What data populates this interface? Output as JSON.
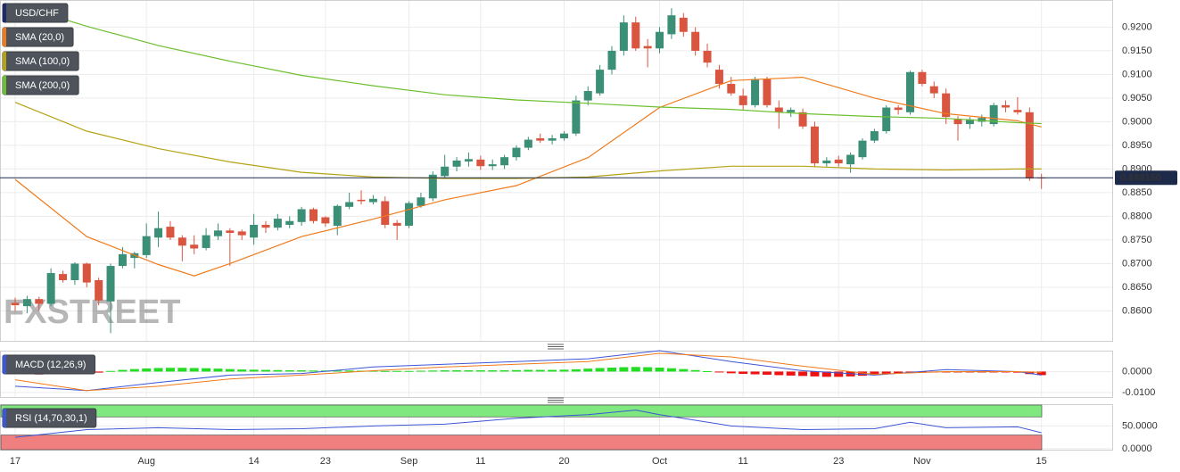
{
  "chart_data": [
    {
      "type": "candlestick",
      "watermark": "FXSTREET",
      "categories": [
        "17",
        null,
        null,
        null,
        null,
        null,
        null,
        null,
        null,
        null,
        null,
        "Aug",
        null,
        null,
        null,
        null,
        null,
        null,
        null,
        null,
        "14",
        null,
        null,
        null,
        null,
        null,
        "23",
        null,
        null,
        null,
        null,
        null,
        null,
        "Sep",
        null,
        null,
        null,
        null,
        null,
        "11",
        null,
        null,
        null,
        null,
        null,
        null,
        "20",
        null,
        null,
        null,
        null,
        null,
        null,
        null,
        "Oct",
        null,
        null,
        null,
        null,
        null,
        null,
        "11",
        null,
        null,
        null,
        null,
        null,
        null,
        null,
        "23",
        null,
        null,
        null,
        null,
        null,
        null,
        "Nov",
        null,
        null,
        null,
        null,
        null,
        null,
        null,
        null,
        null,
        "15"
      ],
      "ylim": [
        0.85348,
        0.92574
      ],
      "yticks": [
        {
          "value": 0.86,
          "label": "0.8600"
        },
        {
          "value": 0.865,
          "label": "0.8650"
        },
        {
          "value": 0.87,
          "label": "0.8700"
        },
        {
          "value": 0.875,
          "label": "0.8750"
        },
        {
          "value": 0.88,
          "label": "0.8800"
        },
        {
          "value": 0.885,
          "label": "0.8850"
        },
        {
          "value": 0.89,
          "label": "0.8900"
        },
        {
          "value": 0.895,
          "label": "0.8950"
        },
        {
          "value": 0.9,
          "label": "0.9000"
        },
        {
          "value": 0.905,
          "label": "0.9050"
        },
        {
          "value": 0.91,
          "label": "0.9100"
        },
        {
          "value": 0.915,
          "label": "0.9150"
        },
        {
          "value": 0.92,
          "label": "0.9200"
        }
      ],
      "grid": true,
      "current_price": {
        "value": 0.88815,
        "label": "0.888150",
        "color": "#1e2a4a"
      },
      "series": [
        {
          "name": "USD/CHF",
          "color": "#1e2a6a",
          "color_up": "#3a8f76",
          "color_down": "#d9553f",
          "open": [
            0.8617,
            0.861,
            0.8625,
            0.8615,
            0.8678,
            0.8665,
            0.87,
            0.8665,
            0.862,
            0.8695,
            0.8712,
            0.8718,
            0.8755,
            0.8778,
            0.8755,
            0.874,
            0.8733,
            0.8758,
            0.877,
            0.8768,
            0.8755,
            0.8782,
            0.8776,
            0.8782,
            0.8788,
            0.8815,
            0.8798,
            0.878,
            0.882,
            0.8835,
            0.883,
            0.8832,
            0.8786,
            0.878,
            0.8822,
            0.8838,
            0.8885,
            0.8905,
            0.8916,
            0.892,
            0.8906,
            0.8908,
            0.8925,
            0.8945,
            0.8965,
            0.896,
            0.8965,
            0.8975,
            0.9045,
            0.906,
            0.911,
            0.915,
            0.921,
            0.916,
            0.9155,
            0.9185,
            0.922,
            0.919,
            0.915,
            0.911,
            0.908,
            0.9055,
            0.9035,
            0.909,
            0.903,
            0.902,
            0.902,
            0.899,
            0.8912,
            0.892,
            0.891,
            0.8925,
            0.896,
            0.898,
            0.903,
            0.902,
            0.9105,
            0.9075,
            0.906,
            0.9005,
            0.8995,
            0.9,
            0.8995,
            0.9035,
            0.9025,
            0.902,
            0.8882
          ],
          "high": [
            0.8628,
            0.8632,
            0.863,
            0.869,
            0.8685,
            0.8703,
            0.8702,
            0.867,
            0.87,
            0.8735,
            0.8725,
            0.8785,
            0.881,
            0.879,
            0.876,
            0.876,
            0.8775,
            0.8785,
            0.8775,
            0.8772,
            0.8805,
            0.879,
            0.8805,
            0.88,
            0.882,
            0.8818,
            0.88,
            0.8825,
            0.885,
            0.8855,
            0.8845,
            0.8842,
            0.8792,
            0.8832,
            0.885,
            0.8895,
            0.893,
            0.8925,
            0.8935,
            0.8928,
            0.892,
            0.893,
            0.895,
            0.8968,
            0.8975,
            0.8972,
            0.898,
            0.9055,
            0.9075,
            0.912,
            0.916,
            0.9225,
            0.9222,
            0.9175,
            0.92,
            0.924,
            0.923,
            0.92,
            0.9165,
            0.912,
            0.9095,
            0.907,
            0.9095,
            0.9095,
            0.9045,
            0.903,
            0.9028,
            0.9,
            0.8925,
            0.8928,
            0.8935,
            0.8965,
            0.8985,
            0.9035,
            0.9035,
            0.9108,
            0.911,
            0.9085,
            0.907,
            0.9012,
            0.901,
            0.9015,
            0.904,
            0.9045,
            0.9052,
            0.903,
            0.889
          ],
          "low": [
            0.86,
            0.8595,
            0.86,
            0.861,
            0.866,
            0.8655,
            0.865,
            0.8612,
            0.8553,
            0.869,
            0.869,
            0.8712,
            0.8735,
            0.875,
            0.8705,
            0.872,
            0.8728,
            0.875,
            0.8695,
            0.875,
            0.874,
            0.8765,
            0.877,
            0.8775,
            0.878,
            0.8785,
            0.8778,
            0.876,
            0.8815,
            0.8825,
            0.8825,
            0.8775,
            0.875,
            0.8775,
            0.8818,
            0.8832,
            0.888,
            0.8895,
            0.8905,
            0.8898,
            0.8898,
            0.89,
            0.8918,
            0.894,
            0.8955,
            0.8952,
            0.896,
            0.897,
            0.9035,
            0.9055,
            0.91,
            0.914,
            0.915,
            0.9115,
            0.9145,
            0.9175,
            0.918,
            0.914,
            0.9115,
            0.907,
            0.9055,
            0.9025,
            0.903,
            0.903,
            0.8985,
            0.901,
            0.8985,
            0.8905,
            0.8905,
            0.8905,
            0.8892,
            0.892,
            0.8955,
            0.8975,
            0.9015,
            0.9015,
            0.9075,
            0.905,
            0.8995,
            0.896,
            0.8985,
            0.899,
            0.899,
            0.902,
            0.9015,
            0.8875,
            0.8858
          ],
          "close": [
            0.8612,
            0.8625,
            0.8615,
            0.868,
            0.8665,
            0.87,
            0.866,
            0.8622,
            0.8695,
            0.872,
            0.8722,
            0.8758,
            0.8775,
            0.8755,
            0.8738,
            0.8732,
            0.876,
            0.877,
            0.8765,
            0.876,
            0.8782,
            0.8776,
            0.8795,
            0.879,
            0.8815,
            0.879,
            0.8785,
            0.8822,
            0.883,
            0.8832,
            0.8837,
            0.8782,
            0.878,
            0.8828,
            0.884,
            0.8888,
            0.8905,
            0.8918,
            0.8921,
            0.8906,
            0.891,
            0.8925,
            0.8945,
            0.8962,
            0.896,
            0.8965,
            0.8975,
            0.9045,
            0.9065,
            0.911,
            0.915,
            0.921,
            0.9155,
            0.9155,
            0.919,
            0.9225,
            0.919,
            0.915,
            0.9125,
            0.908,
            0.906,
            0.9035,
            0.909,
            0.9035,
            0.902,
            0.9025,
            0.899,
            0.8912,
            0.8918,
            0.8912,
            0.893,
            0.896,
            0.898,
            0.903,
            0.9025,
            0.9105,
            0.908,
            0.906,
            0.901,
            0.8995,
            0.9005,
            0.9008,
            0.9035,
            0.903,
            0.902,
            0.888,
            0.8881
          ]
        },
        {
          "name": "SMA (20,0)",
          "color": "#f07a1a",
          "x": [
            0,
            6,
            12,
            15,
            18,
            24,
            30,
            36,
            42,
            48,
            54,
            60,
            66,
            72,
            78,
            84,
            86
          ],
          "values": [
            0.8878,
            0.8757,
            0.8698,
            0.8674,
            0.87,
            0.8757,
            0.8794,
            0.8835,
            0.8865,
            0.8924,
            0.903,
            0.9087,
            0.9094,
            0.905,
            0.9017,
            0.9002,
            0.8989
          ]
        },
        {
          "name": "SMA (100,0)",
          "color": "#b5a214",
          "x": [
            0,
            6,
            12,
            18,
            24,
            30,
            36,
            42,
            48,
            54,
            60,
            66,
            72,
            78,
            84,
            86
          ],
          "values": [
            0.9041,
            0.898,
            0.8943,
            0.8915,
            0.8893,
            0.8883,
            0.888,
            0.888,
            0.8883,
            0.8896,
            0.8906,
            0.8906,
            0.89,
            0.8898,
            0.89,
            0.89
          ]
        },
        {
          "name": "SMA (200,0)",
          "color": "#6cbf2e",
          "x": [
            0,
            6,
            12,
            18,
            24,
            30,
            36,
            42,
            48,
            54,
            60,
            66,
            72,
            78,
            84,
            86
          ],
          "values": [
            0.9248,
            0.9202,
            0.9161,
            0.9128,
            0.9098,
            0.9076,
            0.9057,
            0.9046,
            0.9039,
            0.9031,
            0.9026,
            0.9017,
            0.9011,
            0.9007,
            0.8998,
            0.8996
          ]
        }
      ]
    },
    {
      "type": "macd",
      "title": "MACD (12,26,9)",
      "color": "#3d56d6",
      "ylim": [
        -0.0126,
        0.01
      ],
      "yticks": [
        {
          "value": 0,
          "label": "0.0000"
        },
        {
          "value": -0.01,
          "label": "-0.0100"
        }
      ],
      "series": [
        {
          "color": "#3d56d6",
          "x": [
            0,
            6,
            12,
            18,
            24,
            30,
            36,
            42,
            48,
            54,
            60,
            66,
            72,
            78,
            84,
            86
          ],
          "values": [
            -0.007,
            -0.0091,
            -0.0052,
            -0.0017,
            -0.0009,
            0.0022,
            0.0035,
            0.0048,
            0.0061,
            0.01,
            0.0048,
            0.0004,
            -0.0017,
            0.0009,
            0,
            -0.0017
          ]
        },
        {
          "color": "#f07a1a",
          "x": [
            0,
            6,
            12,
            18,
            24,
            30,
            36,
            42,
            48,
            54,
            60,
            66,
            72,
            78,
            84,
            86
          ],
          "values": [
            -0.0039,
            -0.0091,
            -0.007,
            -0.0035,
            -0.0017,
            0.0004,
            0.0022,
            0.0035,
            0.0048,
            0.0087,
            0.007,
            0.0026,
            -0.0013,
            0,
            0,
            -0.0004
          ]
        }
      ],
      "histogram": {
        "color_up": "#22dd22",
        "color_down": "#ee1111",
        "values": [
          -0.0012,
          -0.0013,
          -0.0014,
          -0.0013,
          -0.0012,
          -0.001,
          -0.0008,
          -0.0005,
          0.0003,
          0.0008,
          0.0012,
          0.0015,
          0.0017,
          0.0018,
          0.0018,
          0.0017,
          0.0016,
          0.0014,
          0.0012,
          0.001,
          0.0009,
          0.0008,
          0.0007,
          0.0006,
          0.0006,
          0.0005,
          0.0005,
          0.0005,
          0.0005,
          0.0004,
          0.0004,
          0.0003,
          0.0003,
          0.0003,
          0.0004,
          0.0005,
          0.0006,
          0.0006,
          0.0006,
          0.0006,
          0.0006,
          0.0006,
          0.0007,
          0.0008,
          0.0008,
          0.0008,
          0.0009,
          0.0011,
          0.0014,
          0.0017,
          0.0019,
          0.0021,
          0.0022,
          0.0021,
          0.0019,
          0.0016,
          0.0012,
          0.0007,
          0.0002,
          -0.0004,
          -0.0008,
          -0.0011,
          -0.0013,
          -0.0015,
          -0.0017,
          -0.0019,
          -0.0021,
          -0.0023,
          -0.0025,
          -0.0025,
          -0.0023,
          -0.002,
          -0.0017,
          -0.0013,
          -0.0009,
          -0.0005,
          -0.0002,
          -0.0002,
          -0.0003,
          -0.0004,
          -0.0004,
          -0.0004,
          -0.0004,
          -0.0004,
          -0.0005,
          -0.0012,
          -0.0017
        ]
      }
    },
    {
      "type": "rsi",
      "title": "RSI (14,70,30,1)",
      "color": "#3d56d6",
      "ylim": [
        -4.2,
        97.9
      ],
      "yticks": [
        {
          "value": 50,
          "label": "50.0000"
        },
        {
          "value": 0,
          "label": "0.0000"
        }
      ],
      "overbought": 70,
      "oversold": 30,
      "overbought_color": "#7fe87f",
      "oversold_color": "#f08080",
      "series": [
        {
          "color": "#3d56d6",
          "x": [
            0,
            6,
            12,
            18,
            24,
            30,
            36,
            42,
            48,
            52,
            54,
            60,
            66,
            72,
            75,
            78,
            84,
            86
          ],
          "values": [
            25,
            42,
            46,
            42,
            44,
            50,
            54,
            67,
            75,
            85,
            75,
            50,
            42,
            44,
            58,
            46,
            48,
            35
          ]
        }
      ]
    }
  ]
}
